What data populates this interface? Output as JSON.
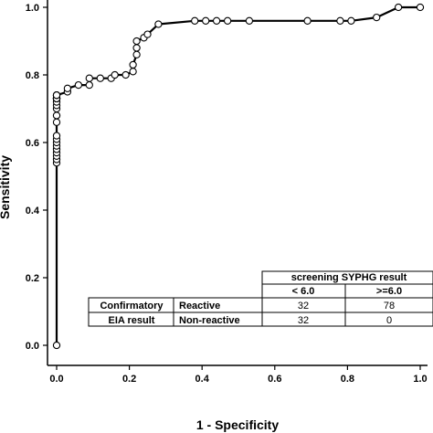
{
  "chart_data": {
    "type": "line",
    "xlabel": "1 - Specificity",
    "ylabel": "Sensitivity",
    "xlim": [
      0,
      1
    ],
    "ylim": [
      0,
      1
    ],
    "xticks": [
      "0.0",
      "0.2",
      "0.4",
      "0.6",
      "0.8",
      "1.0"
    ],
    "yticks": [
      "0.0",
      "0.2",
      "0.4",
      "0.6",
      "0.8",
      "1.0"
    ],
    "grid": false,
    "series": [
      {
        "markers": "open-circle",
        "x": [
          0,
          0,
          0,
          0,
          0,
          0,
          0,
          0,
          0,
          0,
          0,
          0,
          0,
          0,
          0,
          0,
          0,
          0,
          0,
          0,
          0,
          0,
          0,
          0.03,
          0.03,
          0.06,
          0.09,
          0.09,
          0.12,
          0.15,
          0.16,
          0.19,
          0.21,
          0.21,
          0.22,
          0.22,
          0.22,
          0.24,
          0.25,
          0.28,
          0.38,
          0.41,
          0.44,
          0.47,
          0.53,
          0.69,
          0.78,
          0.81,
          0.88,
          0.94,
          1.0
        ],
        "y": [
          0,
          0.54,
          0.55,
          0.56,
          0.57,
          0.58,
          0.59,
          0.6,
          0.61,
          0.62,
          0.66,
          0.68,
          0.7,
          0.71,
          0.72,
          0.73,
          0.73,
          0.73,
          0.73,
          0.73,
          0.74,
          0.74,
          0.74,
          0.75,
          0.76,
          0.77,
          0.77,
          0.79,
          0.79,
          0.79,
          0.8,
          0.8,
          0.81,
          0.83,
          0.86,
          0.88,
          0.9,
          0.91,
          0.92,
          0.95,
          0.96,
          0.96,
          0.96,
          0.96,
          0.96,
          0.96,
          0.96,
          0.96,
          0.97,
          1.0,
          1.0
        ]
      }
    ]
  },
  "table": {
    "header_group": "screening SYPHG result",
    "col1": "< 6.0",
    "col2": ">=6.0",
    "row_group_line1": "Confirmatory",
    "row_group_line2": "EIA result",
    "row1_label": "Reactive",
    "row2_label": "Non-reactive",
    "row1_values": [
      "32",
      "78"
    ],
    "row2_values": [
      "32",
      "0"
    ]
  }
}
